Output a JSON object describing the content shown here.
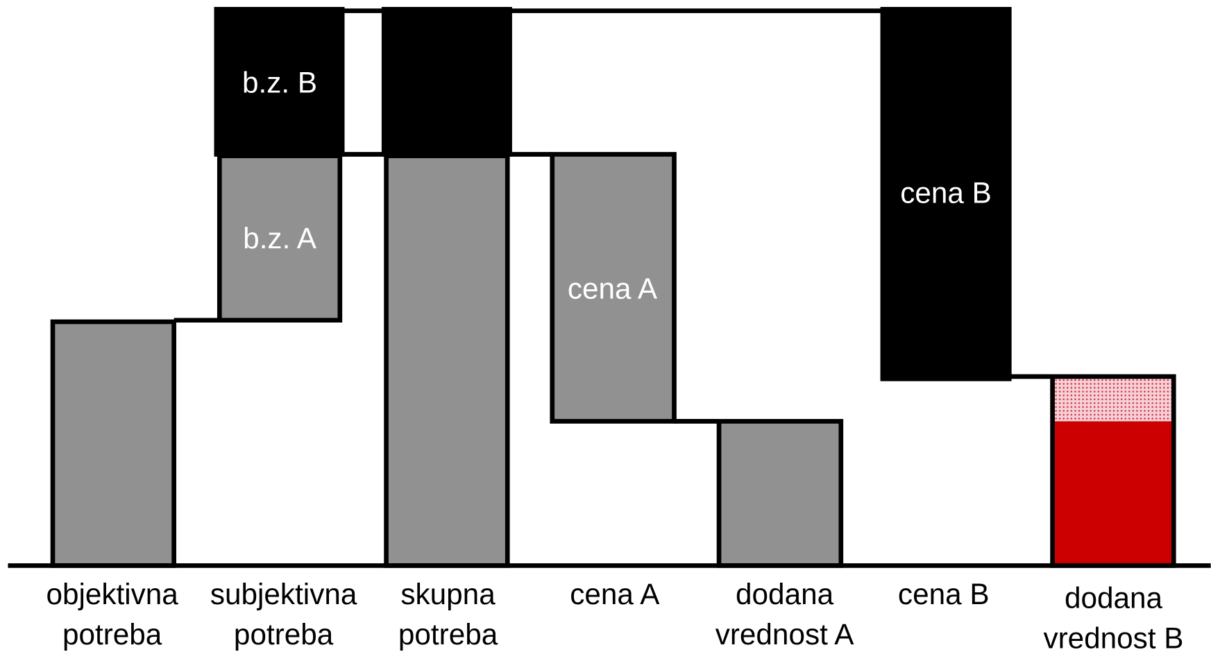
{
  "inner_labels": [
    "b.z. B",
    "b.z. A",
    "cena A",
    "cena B"
  ],
  "columns": [
    {
      "lines": [
        "objektivna",
        "potreba"
      ]
    },
    {
      "lines": [
        "subjektivna",
        "potreba"
      ]
    },
    {
      "lines": [
        "skupna",
        "potreba"
      ]
    },
    {
      "lines": [
        "cena A"
      ]
    },
    {
      "lines": [
        "dodana",
        "vrednost A"
      ]
    },
    {
      "lines": [
        "cena B"
      ]
    },
    {
      "lines": [
        "dodana",
        "vrednost B"
      ]
    }
  ]
}
